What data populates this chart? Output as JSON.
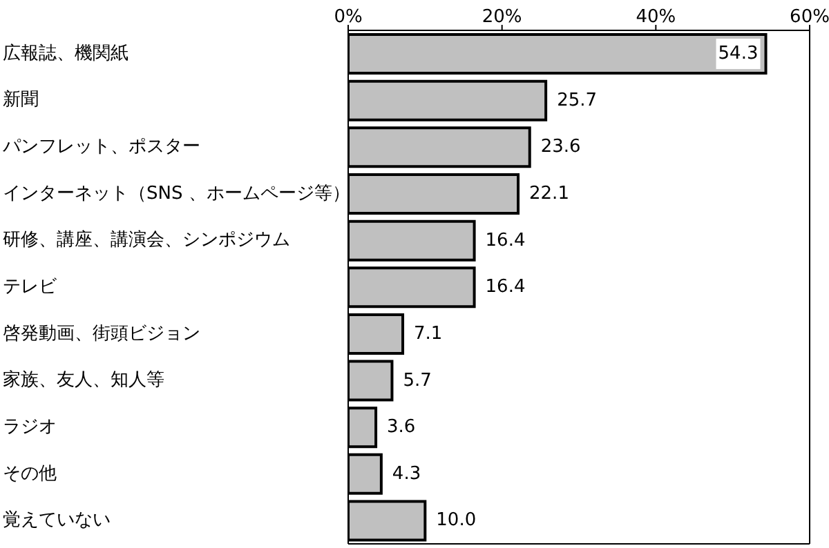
{
  "chart_data": {
    "type": "bar",
    "orientation": "horizontal",
    "categories": [
      "広報誌、機関紙",
      "新聞",
      "パンフレット、ポスター",
      "インターネット（SNS 、ホームページ等）",
      "研修、講座、講演会、シンポジウム",
      "テレビ",
      "啓発動画、街頭ビジョン",
      "家族、友人、知人等",
      "ラジオ",
      "その他",
      "覚えていない"
    ],
    "values": [
      54.3,
      25.7,
      23.6,
      22.1,
      16.4,
      16.4,
      7.1,
      5.7,
      3.6,
      4.3,
      10.0
    ],
    "value_labels": [
      "54.3",
      "25.7",
      "23.6",
      "22.1",
      "16.4",
      "16.4",
      "7.1",
      "5.7",
      "3.6",
      "4.3",
      "10.0"
    ],
    "color": "#c0c0c0",
    "xlim": [
      0,
      60
    ],
    "xticks": [
      {
        "value": 0,
        "label": "0%"
      },
      {
        "value": 20,
        "label": "20%"
      },
      {
        "value": 40,
        "label": "40%"
      },
      {
        "value": 60,
        "label": "60%"
      }
    ],
    "grid": false,
    "legend": false
  }
}
